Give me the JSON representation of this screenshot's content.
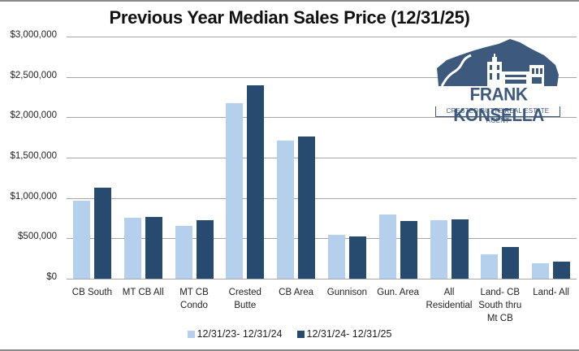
{
  "chart_data": {
    "type": "bar",
    "title": "Previous Year Median Sales Price (12/31/25)",
    "xlabel": "",
    "ylabel": "",
    "ylim": [
      0,
      3000000
    ],
    "yticks": [
      0,
      500000,
      1000000,
      1500000,
      2000000,
      2500000,
      3000000
    ],
    "ytick_labels": [
      "$0",
      "$500,000",
      "$1,000,000",
      "$1,500,000",
      "$2,000,000",
      "$2,500,000",
      "$3,000,000"
    ],
    "grid": true,
    "legend_position": "bottom",
    "categories": [
      "CB South",
      "MT CB All",
      "MT CB Condo",
      "Crested Butte",
      "CB Area",
      "Gunnison",
      "Gun. Area",
      "All Residential",
      "Land- CB South thru Mt CB",
      "Land- All"
    ],
    "category_lines": [
      [
        "CB South"
      ],
      [
        "MT CB All"
      ],
      [
        "MT CB",
        "Condo"
      ],
      [
        "Crested",
        "Butte"
      ],
      [
        "CB Area"
      ],
      [
        "Gunnison"
      ],
      [
        "Gun. Area"
      ],
      [
        "All",
        "Residential"
      ],
      [
        "Land- CB",
        "South thru",
        "Mt CB"
      ],
      [
        "Land- All"
      ]
    ],
    "series": [
      {
        "name": "12/31/23- 12/31/24",
        "color": "#b4d0ec",
        "values": [
          963000,
          751000,
          650000,
          2175000,
          1714000,
          540000,
          795000,
          730000,
          302000,
          189000
        ]
      },
      {
        "name": "12/31/24- 12/31/25",
        "color": "#274a6f",
        "values": [
          1124000,
          765000,
          725000,
          2400000,
          1760000,
          520000,
          710000,
          740000,
          394000,
          216000
        ]
      }
    ]
  },
  "logo": {
    "name": "FRANK KONSELLA",
    "tagline": "CRESTED BUTTE REAL ESTATE AGENT",
    "color": "#3d5a7d"
  }
}
